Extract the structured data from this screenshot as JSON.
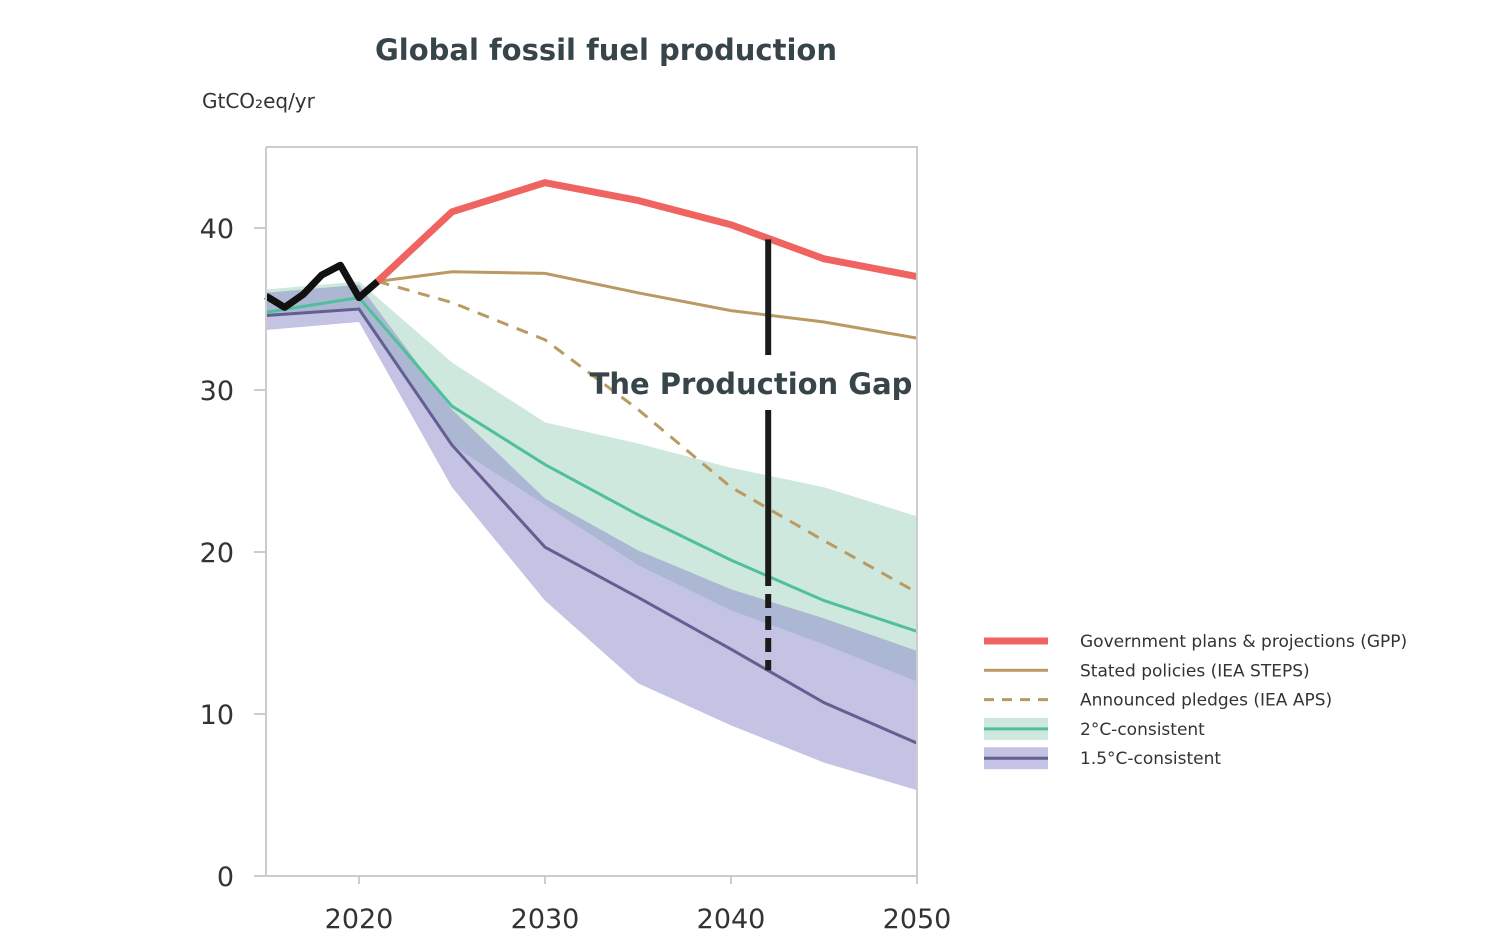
{
  "chart_data": {
    "type": "line",
    "title": "Global fossil fuel production",
    "ylabel": "GtCO₂eq/yr",
    "xlabel": "",
    "xlim": [
      2015,
      2050
    ],
    "ylim": [
      0,
      45
    ],
    "x_ticks": [
      2020,
      2030,
      2040,
      2050
    ],
    "y_ticks": [
      0,
      10,
      20,
      30,
      40
    ],
    "grid": false,
    "legend_position": "right",
    "colors": {
      "gpp": "#ef6461",
      "steps": "#b99a62",
      "aps": "#b99a62",
      "c2_line": "#4fc09b",
      "c2_band": "#cfe8de",
      "c15_line": "#635f91",
      "c15_band": "#8a88c8",
      "historical": "#111111",
      "gap": "#1a1a1a"
    },
    "historical": {
      "x": [
        2015,
        2016,
        2017,
        2018,
        2019,
        2020,
        2021
      ],
      "y": [
        35.8,
        35.1,
        35.9,
        37.1,
        37.7,
        35.7,
        36.7
      ]
    },
    "series": [
      {
        "key": "gpp",
        "name": "Government plans & projections (GPP)",
        "style": "thick",
        "x": [
          2021,
          2025,
          2030,
          2035,
          2040,
          2045,
          2050
        ],
        "y": [
          36.7,
          41.0,
          42.8,
          41.7,
          40.2,
          38.1,
          37.0
        ]
      },
      {
        "key": "steps",
        "name": "Stated policies (IEA STEPS)",
        "style": "solid",
        "x": [
          2021,
          2025,
          2030,
          2035,
          2040,
          2045,
          2050
        ],
        "y": [
          36.7,
          37.3,
          37.2,
          36.0,
          34.9,
          34.2,
          33.2
        ]
      },
      {
        "key": "aps",
        "name": "Announced pledges (IEA APS)",
        "style": "dashed",
        "x": [
          2021,
          2025,
          2030,
          2035,
          2040,
          2045,
          2050
        ],
        "y": [
          36.7,
          35.4,
          33.1,
          28.8,
          24.0,
          20.7,
          17.5
        ]
      },
      {
        "key": "c2",
        "name": "2°C-consistent",
        "style": "band",
        "x": [
          2015,
          2020,
          2025,
          2030,
          2035,
          2040,
          2045,
          2050
        ],
        "y": [
          34.8,
          35.7,
          29.0,
          25.4,
          22.3,
          19.5,
          17.0,
          15.1
        ],
        "upper": [
          36.2,
          36.7,
          31.7,
          28.0,
          26.7,
          25.2,
          24.0,
          22.2
        ],
        "lower": [
          34.6,
          35.0,
          26.6,
          22.9,
          19.2,
          16.4,
          14.3,
          12.0
        ]
      },
      {
        "key": "c15",
        "name": "1.5°C-consistent",
        "style": "band",
        "x": [
          2015,
          2020,
          2025,
          2030,
          2035,
          2040,
          2045,
          2050
        ],
        "y": [
          34.6,
          35.0,
          26.6,
          20.3,
          17.2,
          14.0,
          10.7,
          8.2
        ],
        "upper": [
          36.0,
          36.5,
          28.8,
          23.3,
          20.1,
          17.7,
          15.9,
          13.9
        ],
        "lower": [
          33.7,
          34.2,
          24.0,
          17.0,
          11.9,
          9.3,
          7.0,
          5.3
        ]
      }
    ],
    "annotations": [
      {
        "text": "The Production Gap",
        "x": 2042,
        "y_from": 39.3,
        "y_to": 12.7
      }
    ]
  }
}
